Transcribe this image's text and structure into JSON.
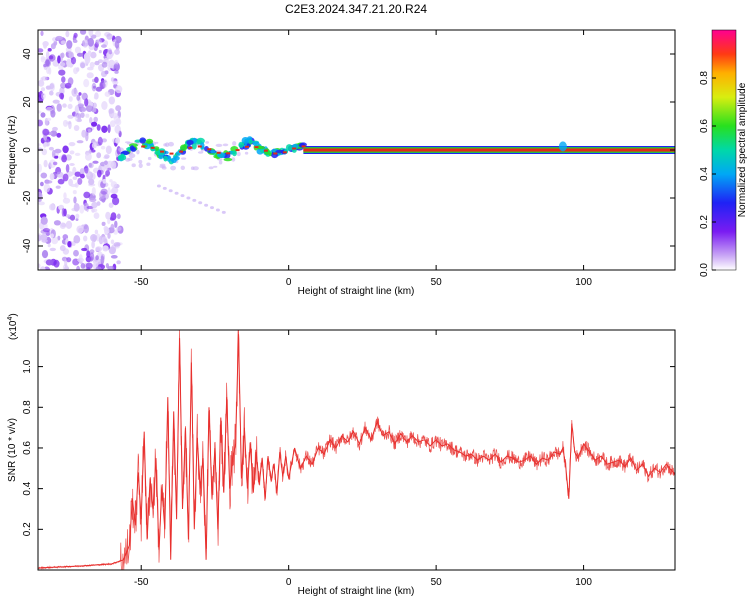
{
  "title": "C2E3.2024.347.21.20.R24",
  "colorbar": {
    "label": "Normalized spectral amplitude",
    "ticks": [
      "0.0",
      "0.2",
      "0.4",
      "0.6",
      "0.8"
    ],
    "tick_values": [
      0.0,
      0.2,
      0.4,
      0.6,
      0.8
    ],
    "range": [
      0,
      1
    ]
  },
  "chart_data": [
    {
      "type": "heatmap",
      "xlabel": "Height of straight line (km)",
      "ylabel": "Frequency (Hz)",
      "xlim": [
        -85,
        131
      ],
      "ylim": [
        -50,
        50
      ],
      "xticks": [
        -50,
        0,
        50,
        100
      ],
      "xtick_labels": [
        "-50",
        "0",
        "50",
        "100"
      ],
      "yticks": [
        -40,
        -20,
        0,
        20,
        40
      ],
      "ytick_labels": [
        "-40",
        "-20",
        "0",
        "20",
        "40"
      ],
      "features": {
        "noise_region_x": [
          -85,
          -57
        ],
        "signal_line_frequency": 0,
        "signal_line_x": [
          -57,
          131
        ]
      }
    },
    {
      "type": "line",
      "xlabel": "Height of straight line (km)",
      "ylabel": "SNR (10 * v/v)",
      "exponent_label": "(x10",
      "exponent_power": "4",
      "exponent_close": ")",
      "xlim": [
        -85,
        131
      ],
      "ylim": [
        0,
        1.18
      ],
      "xticks": [
        -50,
        0,
        50,
        100
      ],
      "xtick_labels": [
        "-50",
        "0",
        "50",
        "100"
      ],
      "yticks": [
        0.2,
        0.4,
        0.6,
        0.8,
        1.0
      ],
      "ytick_labels": [
        "0.2",
        "0.4",
        "0.6",
        "0.8",
        "1.0"
      ],
      "color": "#e8302e",
      "x": [
        -85,
        -70,
        -60,
        -56,
        -54,
        -53,
        -52,
        -51,
        -50,
        -49,
        -48,
        -47,
        -46,
        -45,
        -44,
        -43,
        -42,
        -41,
        -40,
        -39,
        -38,
        -37,
        -36,
        -35,
        -34,
        -33,
        -32,
        -31,
        -30,
        -29,
        -28,
        -27,
        -26,
        -25,
        -24,
        -23,
        -22,
        -21,
        -20,
        -19,
        -18,
        -17,
        -16,
        -15,
        -14,
        -13,
        -12,
        -11,
        -10,
        -9,
        -8,
        -7,
        -6,
        -5,
        -4,
        -3,
        -2,
        -1,
        0,
        2,
        4,
        6,
        8,
        10,
        12,
        14,
        16,
        18,
        20,
        22,
        24,
        26,
        28,
        30,
        32,
        34,
        36,
        38,
        40,
        42,
        44,
        46,
        48,
        50,
        52,
        54,
        56,
        58,
        60,
        62,
        64,
        66,
        68,
        70,
        72,
        74,
        76,
        78,
        80,
        82,
        84,
        86,
        88,
        90,
        92,
        93,
        94,
        95,
        96,
        97,
        98,
        100,
        102,
        104,
        106,
        108,
        110,
        112,
        114,
        116,
        118,
        120,
        122,
        124,
        126,
        128,
        131
      ],
      "y": [
        0.01,
        0.02,
        0.03,
        0.05,
        0.12,
        0.35,
        0.22,
        0.48,
        0.25,
        0.68,
        0.15,
        0.45,
        0.3,
        0.55,
        0.1,
        0.4,
        0.2,
        0.85,
        0.05,
        0.78,
        0.25,
        1.14,
        0.3,
        0.7,
        0.15,
        1.02,
        0.2,
        0.65,
        0.4,
        0.55,
        0.05,
        0.8,
        0.35,
        0.6,
        0.2,
        0.75,
        0.38,
        0.85,
        0.4,
        0.55,
        0.62,
        1.16,
        0.45,
        0.7,
        0.4,
        0.62,
        0.38,
        0.58,
        0.42,
        0.55,
        0.35,
        0.56,
        0.44,
        0.52,
        0.38,
        0.58,
        0.46,
        0.56,
        0.45,
        0.6,
        0.5,
        0.56,
        0.52,
        0.6,
        0.57,
        0.64,
        0.6,
        0.66,
        0.63,
        0.68,
        0.62,
        0.7,
        0.64,
        0.73,
        0.66,
        0.68,
        0.62,
        0.67,
        0.63,
        0.66,
        0.63,
        0.64,
        0.61,
        0.64,
        0.61,
        0.62,
        0.59,
        0.58,
        0.56,
        0.57,
        0.54,
        0.56,
        0.54,
        0.57,
        0.53,
        0.56,
        0.55,
        0.53,
        0.54,
        0.56,
        0.52,
        0.55,
        0.54,
        0.58,
        0.57,
        0.6,
        0.5,
        0.35,
        0.72,
        0.58,
        0.55,
        0.62,
        0.58,
        0.54,
        0.56,
        0.52,
        0.53,
        0.54,
        0.51,
        0.55,
        0.49,
        0.52,
        0.46,
        0.5,
        0.48,
        0.52,
        0.47
      ]
    }
  ]
}
